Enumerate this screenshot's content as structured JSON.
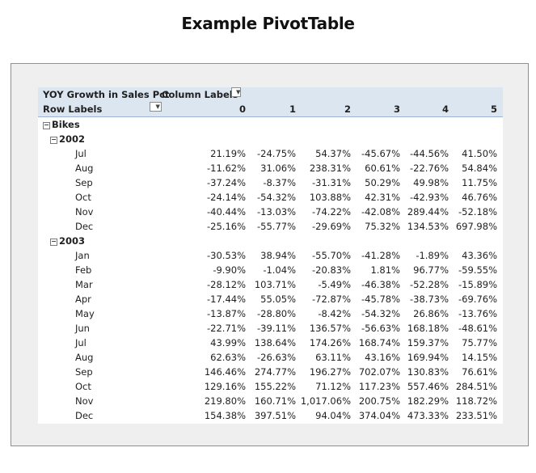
{
  "page": {
    "title": "Example PivotTable"
  },
  "pivot": {
    "value_field": "YOY Growth in Sales Pct",
    "column_labels": "Column Labels",
    "row_labels": "Row Labels",
    "columns": [
      "0",
      "1",
      "2",
      "3",
      "4",
      "5"
    ],
    "category": "Bikes",
    "years": [
      {
        "year": "2002",
        "months": [
          {
            "month": "Jul",
            "values": [
              "21.19%",
              "-24.75%",
              "54.37%",
              "-45.67%",
              "-44.56%",
              "41.50%"
            ]
          },
          {
            "month": "Aug",
            "values": [
              "-11.62%",
              "31.06%",
              "238.31%",
              "60.61%",
              "-22.76%",
              "54.84%"
            ]
          },
          {
            "month": "Sep",
            "values": [
              "-37.24%",
              "-8.37%",
              "-31.31%",
              "50.29%",
              "49.98%",
              "11.75%"
            ]
          },
          {
            "month": "Oct",
            "values": [
              "-24.14%",
              "-54.32%",
              "103.88%",
              "42.31%",
              "-42.93%",
              "46.76%"
            ]
          },
          {
            "month": "Nov",
            "values": [
              "-40.44%",
              "-13.03%",
              "-74.22%",
              "-42.08%",
              "289.44%",
              "-52.18%"
            ]
          },
          {
            "month": "Dec",
            "values": [
              "-25.16%",
              "-55.77%",
              "-29.69%",
              "75.32%",
              "134.53%",
              "697.98%"
            ]
          }
        ]
      },
      {
        "year": "2003",
        "months": [
          {
            "month": "Jan",
            "values": [
              "-30.53%",
              "38.94%",
              "-55.70%",
              "-41.28%",
              "-1.89%",
              "43.36%"
            ]
          },
          {
            "month": "Feb",
            "values": [
              "-9.90%",
              "-1.04%",
              "-20.83%",
              "1.81%",
              "96.77%",
              "-59.55%"
            ]
          },
          {
            "month": "Mar",
            "values": [
              "-28.12%",
              "103.71%",
              "-5.49%",
              "-46.38%",
              "-52.28%",
              "-15.89%"
            ]
          },
          {
            "month": "Apr",
            "values": [
              "-17.44%",
              "55.05%",
              "-72.87%",
              "-45.78%",
              "-38.73%",
              "-69.76%"
            ]
          },
          {
            "month": "May",
            "values": [
              "-13.87%",
              "-28.80%",
              "-8.42%",
              "-54.32%",
              "26.86%",
              "-13.76%"
            ]
          },
          {
            "month": "Jun",
            "values": [
              "-22.71%",
              "-39.11%",
              "136.57%",
              "-56.63%",
              "168.18%",
              "-48.61%"
            ]
          },
          {
            "month": "Jul",
            "values": [
              "43.99%",
              "138.64%",
              "174.26%",
              "168.74%",
              "159.37%",
              "75.77%"
            ]
          },
          {
            "month": "Aug",
            "values": [
              "62.63%",
              "-26.63%",
              "63.11%",
              "43.16%",
              "169.94%",
              "14.15%"
            ]
          },
          {
            "month": "Sep",
            "values": [
              "146.46%",
              "274.77%",
              "196.27%",
              "702.07%",
              "130.83%",
              "76.61%"
            ]
          },
          {
            "month": "Oct",
            "values": [
              "129.16%",
              "155.22%",
              "71.12%",
              "117.23%",
              "557.46%",
              "284.51%"
            ]
          },
          {
            "month": "Nov",
            "values": [
              "219.80%",
              "160.71%",
              "1,017.06%",
              "200.75%",
              "182.29%",
              "118.72%"
            ]
          },
          {
            "month": "Dec",
            "values": [
              "154.38%",
              "397.51%",
              "94.04%",
              "374.04%",
              "473.33%",
              "233.51%"
            ]
          }
        ]
      }
    ]
  },
  "icons": {
    "column_filter": "dropdown-arrow-icon",
    "row_filter": "filter-dropdown-icon",
    "collapse": "collapse-minus-icon"
  }
}
